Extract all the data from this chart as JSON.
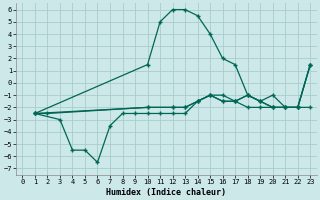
{
  "title": "",
  "xlabel": "Humidex (Indice chaleur)",
  "bg_color": "#cce8e8",
  "grid_color": "#aacccc",
  "line_color": "#006655",
  "xlim": [
    -0.5,
    23.5
  ],
  "ylim": [
    -7.5,
    6.5
  ],
  "xticks": [
    0,
    1,
    2,
    3,
    4,
    5,
    6,
    7,
    8,
    9,
    10,
    11,
    12,
    13,
    14,
    15,
    16,
    17,
    18,
    19,
    20,
    21,
    22,
    23
  ],
  "yticks": [
    -7,
    -6,
    -5,
    -4,
    -3,
    -2,
    -1,
    0,
    1,
    2,
    3,
    4,
    5,
    6
  ],
  "curve_peak_x": [
    1,
    10,
    11,
    12,
    13,
    14,
    15,
    16,
    17,
    18,
    19,
    20,
    21,
    22,
    23
  ],
  "curve_peak_y": [
    -2.5,
    1.5,
    5.0,
    6.0,
    6.0,
    5.5,
    4.0,
    2.0,
    1.5,
    -1.0,
    -1.5,
    -2.0,
    -2.0,
    -2.0,
    1.5
  ],
  "curve_dip_x": [
    1,
    3,
    4,
    5,
    6,
    7,
    8,
    9,
    10,
    11,
    12,
    13,
    14,
    15,
    16,
    17,
    18,
    19,
    20,
    21,
    22,
    23
  ],
  "curve_dip_y": [
    -2.5,
    -3.0,
    -5.5,
    -5.5,
    -6.5,
    -3.5,
    -2.5,
    -2.5,
    -2.5,
    -2.5,
    -2.5,
    -2.5,
    -1.5,
    -1.0,
    -1.5,
    -1.5,
    -2.0,
    -2.0,
    -2.0,
    -2.0,
    -2.0,
    1.5
  ],
  "curve_flat1_x": [
    1,
    2,
    10,
    12,
    13,
    14,
    15,
    16,
    17,
    18,
    19,
    20,
    21,
    22,
    23
  ],
  "curve_flat1_y": [
    -2.5,
    -2.5,
    -2.0,
    -2.0,
    -2.0,
    -1.5,
    -1.0,
    -1.5,
    -1.5,
    -1.0,
    -1.5,
    -2.0,
    -2.0,
    -2.0,
    -2.0
  ],
  "curve_flat2_x": [
    1,
    10,
    12,
    13,
    14,
    15,
    16,
    17,
    18,
    19,
    20,
    21,
    22,
    23
  ],
  "curve_flat2_y": [
    -2.5,
    -2.0,
    -2.0,
    -2.0,
    -1.5,
    -1.0,
    -1.0,
    -1.5,
    -1.0,
    -1.5,
    -1.0,
    -2.0,
    -2.0,
    1.5
  ]
}
